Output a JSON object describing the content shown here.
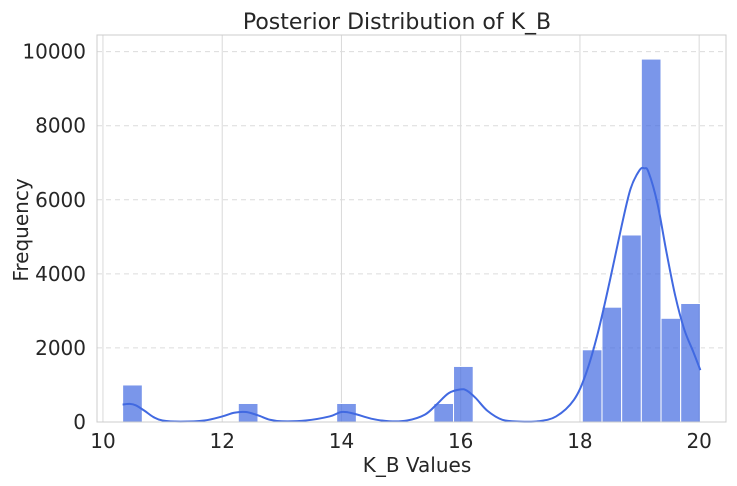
{
  "chart_data": {
    "type": "bar",
    "title": "Posterior Distribution of K_B",
    "xlabel": "K_B Values",
    "ylabel": "Frequency",
    "xlim": [
      9.9,
      20.45
    ],
    "ylim": [
      0,
      10450
    ],
    "xticks": [
      10,
      12,
      14,
      16,
      18,
      20
    ],
    "yticks": [
      0,
      2000,
      4000,
      6000,
      8000,
      10000
    ],
    "grid": true,
    "bins": [
      {
        "x0": 10.33,
        "x1": 10.66,
        "value": 1000
      },
      {
        "x0": 12.27,
        "x1": 12.6,
        "value": 500
      },
      {
        "x0": 13.92,
        "x1": 14.25,
        "value": 500
      },
      {
        "x0": 15.55,
        "x1": 15.88,
        "value": 500
      },
      {
        "x0": 15.88,
        "x1": 16.21,
        "value": 1500
      },
      {
        "x0": 18.04,
        "x1": 18.37,
        "value": 1950
      },
      {
        "x0": 18.37,
        "x1": 18.7,
        "value": 3100
      },
      {
        "x0": 18.7,
        "x1": 19.03,
        "value": 5050
      },
      {
        "x0": 19.03,
        "x1": 19.36,
        "value": 9800
      },
      {
        "x0": 19.36,
        "x1": 19.69,
        "value": 2800
      },
      {
        "x0": 19.69,
        "x1": 20.02,
        "value": 3200
      }
    ],
    "kde": {
      "x": [
        10.33,
        10.45,
        10.55,
        10.7,
        10.85,
        11.0,
        11.3,
        11.7,
        12.0,
        12.2,
        12.4,
        12.6,
        12.8,
        13.0,
        13.4,
        13.8,
        14.0,
        14.2,
        14.5,
        14.8,
        15.1,
        15.4,
        15.6,
        15.8,
        16.0,
        16.1,
        16.25,
        16.45,
        16.7,
        17.0,
        17.3,
        17.6,
        17.9,
        18.1,
        18.3,
        18.5,
        18.7,
        18.85,
        19.0,
        19.08,
        19.15,
        19.3,
        19.45,
        19.6,
        19.75,
        19.9,
        20.02
      ],
      "y": [
        470,
        490,
        450,
        300,
        130,
        40,
        10,
        40,
        150,
        250,
        270,
        180,
        60,
        20,
        40,
        150,
        270,
        230,
        90,
        20,
        40,
        200,
        480,
        780,
        880,
        850,
        650,
        300,
        60,
        10,
        20,
        150,
        600,
        1300,
        2400,
        3800,
        5300,
        6300,
        6800,
        6850,
        6750,
        5900,
        4600,
        3400,
        2500,
        1900,
        1400
      ]
    }
  }
}
